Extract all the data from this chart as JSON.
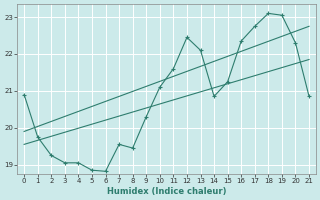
{
  "xlabel": "Humidex (Indice chaleur)",
  "ylabel": "",
  "bg_color": "#cceaea",
  "line_color": "#2e7d6e",
  "grid_color": "#ffffff",
  "xlim": [
    -0.5,
    21.5
  ],
  "ylim": [
    18.75,
    23.35
  ],
  "yticks": [
    19,
    20,
    21,
    22,
    23
  ],
  "xticks": [
    0,
    1,
    2,
    3,
    4,
    5,
    6,
    7,
    8,
    9,
    10,
    11,
    12,
    13,
    14,
    15,
    16,
    17,
    18,
    19,
    20,
    21
  ],
  "main_x": [
    0,
    1,
    2,
    3,
    4,
    5,
    6,
    7,
    8,
    9,
    10,
    11,
    12,
    13,
    14,
    15,
    16,
    17,
    18,
    19,
    20,
    21
  ],
  "main_y": [
    20.9,
    19.75,
    19.25,
    19.05,
    19.05,
    18.85,
    18.82,
    19.55,
    19.45,
    20.3,
    21.1,
    21.6,
    22.45,
    22.1,
    20.85,
    21.25,
    22.35,
    22.75,
    23.1,
    23.05,
    22.3,
    20.85
  ],
  "line1_x": [
    0,
    21
  ],
  "line1_y": [
    19.55,
    21.85
  ],
  "line2_x": [
    0,
    21
  ],
  "line2_y": [
    19.9,
    22.75
  ]
}
